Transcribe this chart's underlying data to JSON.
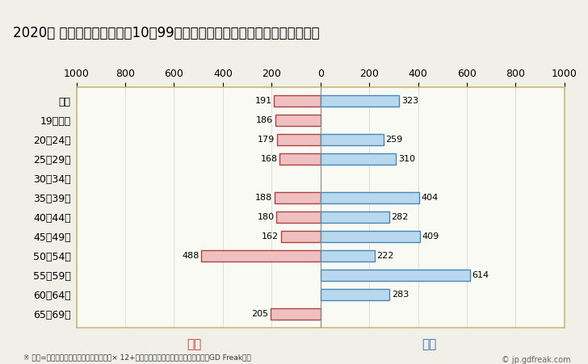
{
  "title": "2020年 民間企業（従業者数10～99人）フルタイム労働者の男女別平均年収",
  "categories": [
    "全体",
    "19歳以下",
    "20～24歳",
    "25～29歳",
    "30～34歳",
    "35～39歳",
    "40～44歳",
    "45～49歳",
    "50～54歳",
    "55～59歳",
    "60～64歳",
    "65～69歳"
  ],
  "female_values": [
    191,
    186,
    179,
    168,
    0,
    188,
    180,
    162,
    488,
    0,
    0,
    205
  ],
  "male_values": [
    323,
    0,
    259,
    310,
    0,
    404,
    282,
    409,
    222,
    614,
    283,
    0
  ],
  "female_color": "#f0c0c0",
  "male_color": "#b8d8ee",
  "female_border": "#aa4444",
  "male_border": "#4488bb",
  "female_label": "女性",
  "male_label": "男性",
  "female_label_color": "#cc3333",
  "male_label_color": "#3366bb",
  "xlim": [
    -1000,
    1000
  ],
  "xticks": [
    -1000,
    -800,
    -600,
    -400,
    -200,
    0,
    200,
    400,
    600,
    800,
    1000
  ],
  "xticklabels": [
    "1000",
    "800",
    "600",
    "400",
    "200",
    "0",
    "200",
    "400",
    "600",
    "800",
    "1000"
  ],
  "background_color": "#f0f0e8",
  "plot_background": "#fafaf5",
  "plot_border_color": "#c8b878",
  "grid_color": "#dddddd",
  "title_fontsize": 12,
  "tick_fontsize": 9,
  "note": "※ 年収=「きまって支給する現金給与額」× 12+「年間賞与その他特別給与額」としてGD Freak推計",
  "watermark": "© jp.gdfreak.com",
  "bar_height": 0.55
}
